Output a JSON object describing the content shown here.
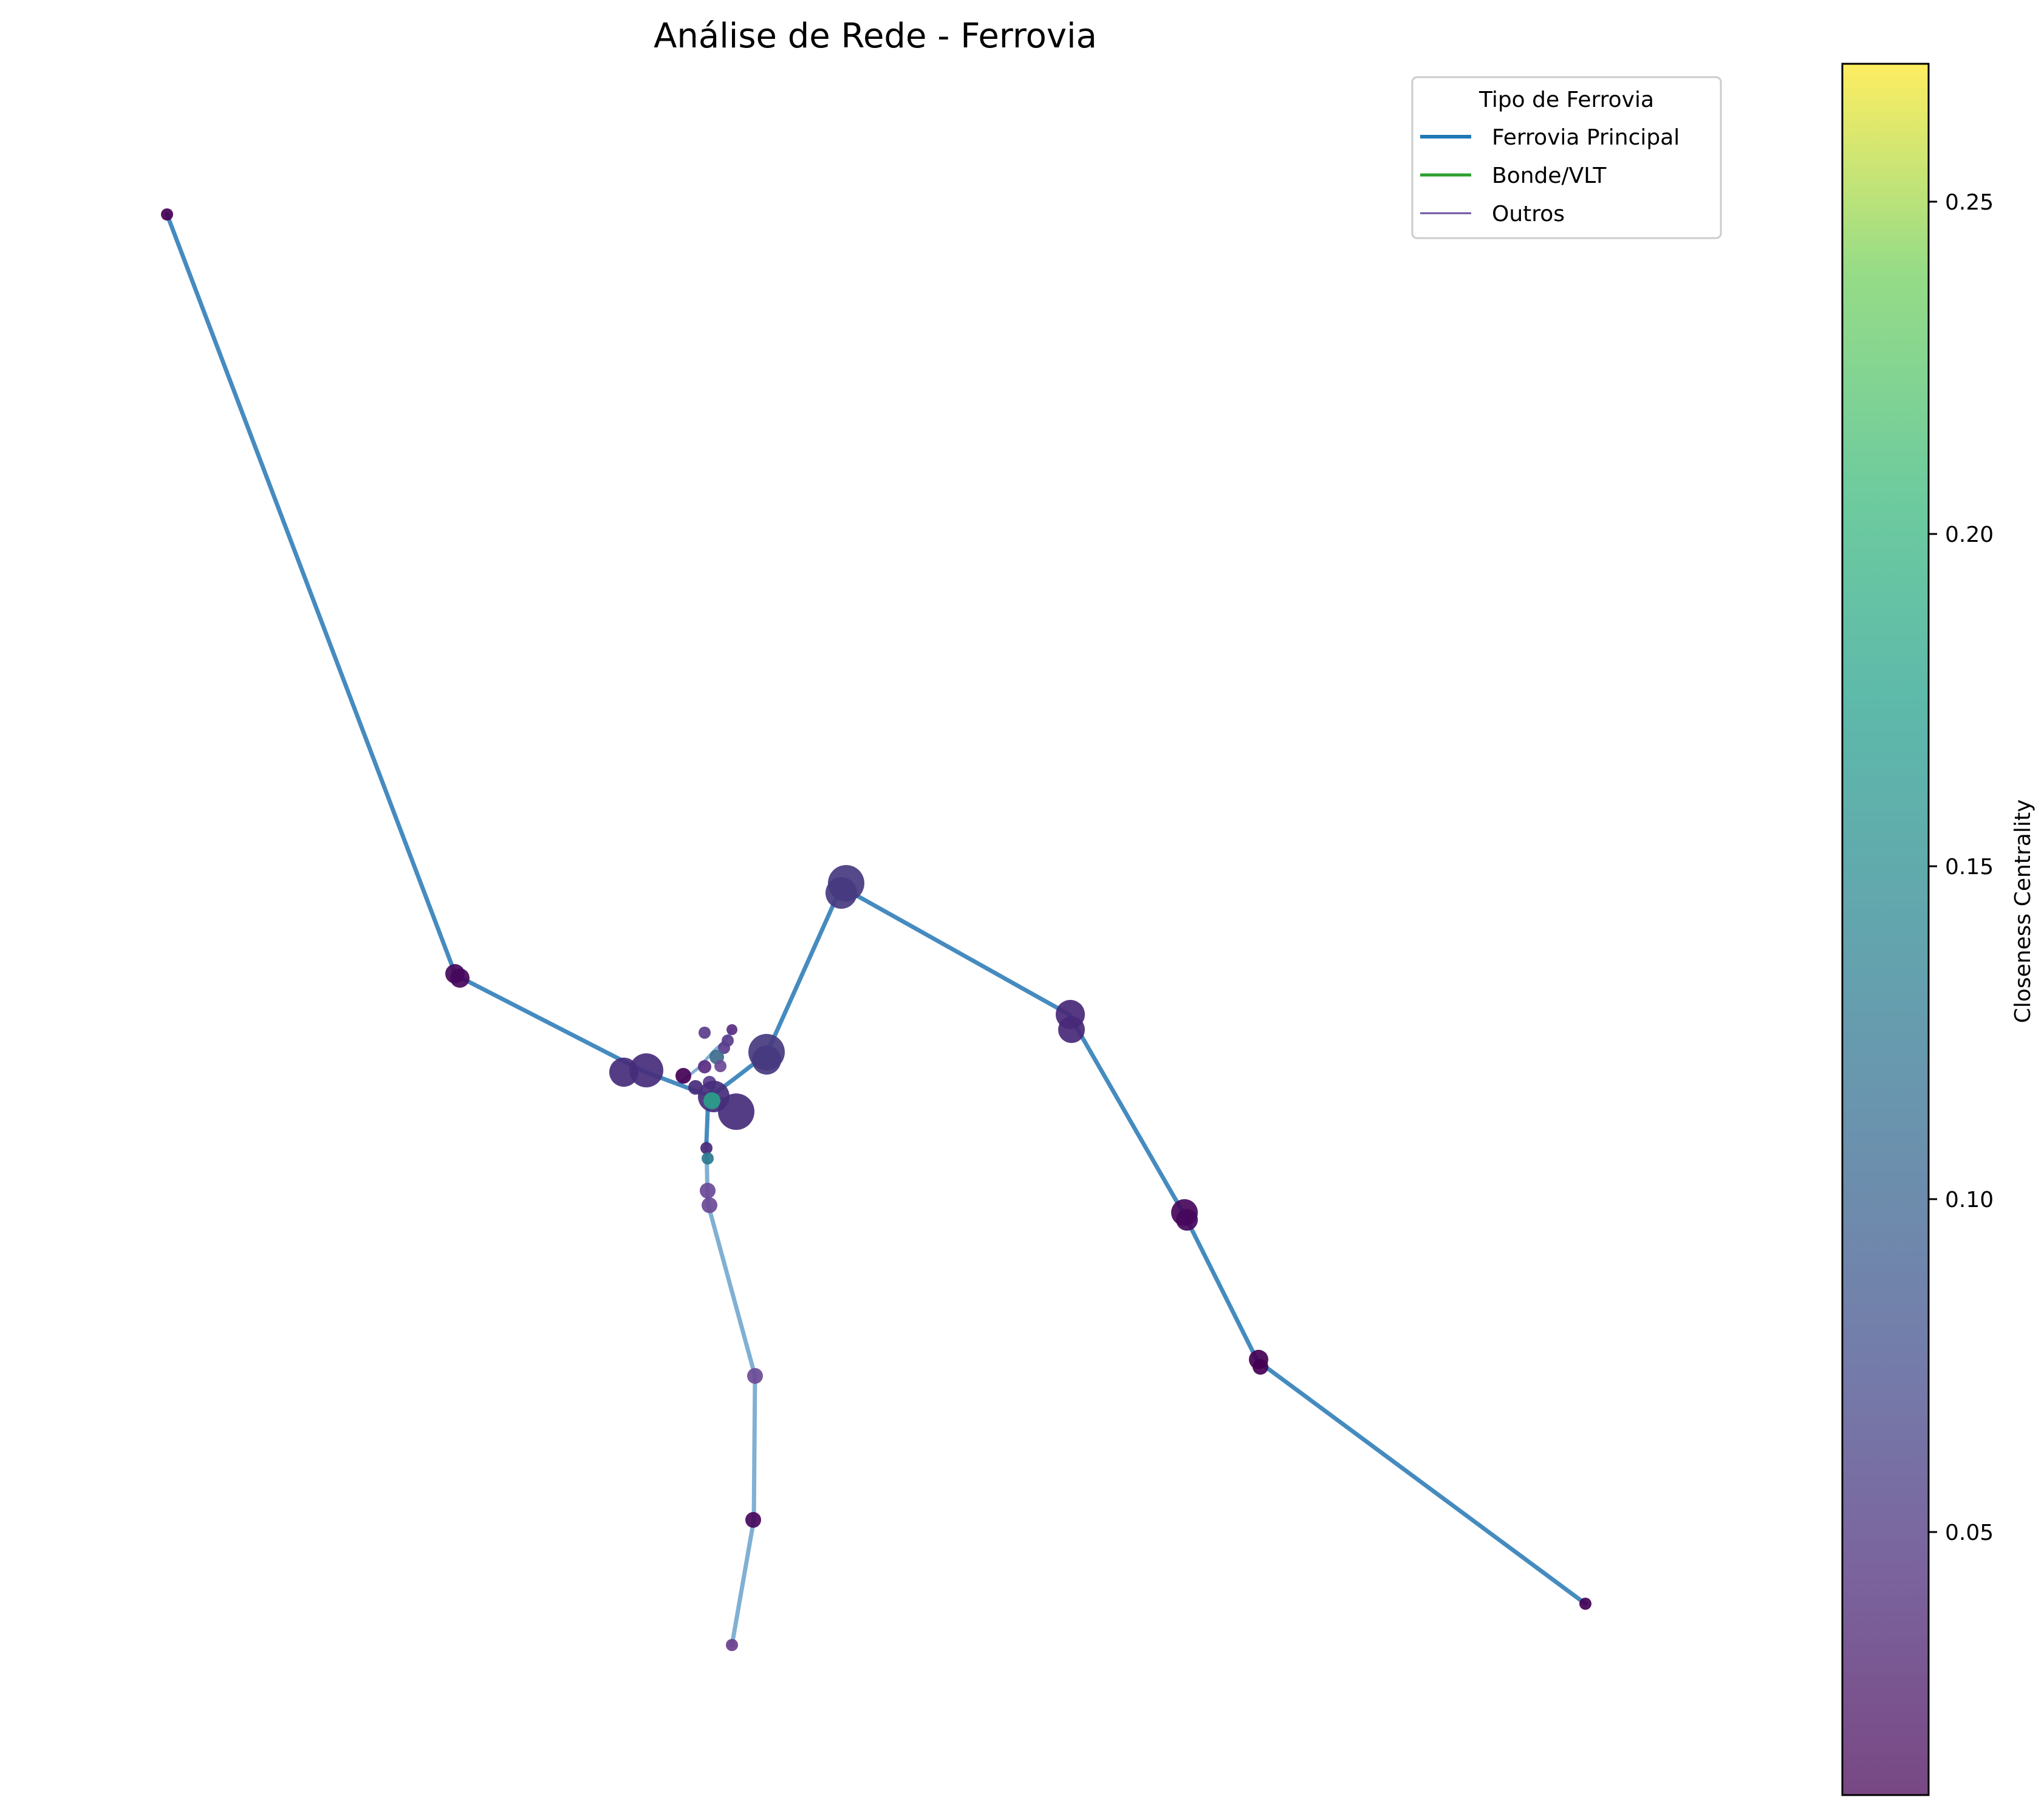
{
  "title": "Análise de Rede - Ferrovia",
  "legend": {
    "title": "Tipo de Ferrovia",
    "entries": [
      {
        "label": "Ferrovia Principal",
        "color": "#1f77b4"
      },
      {
        "label": "Bonde/VLT",
        "color": "#2ca02c"
      },
      {
        "label": "Outros",
        "color": "#6a51a3"
      }
    ]
  },
  "colorbar": {
    "label": "Closeness Centrality",
    "colormap": "viridis",
    "range": [
      0.01,
      0.27
    ],
    "ticks": [
      "0.05",
      "0.10",
      "0.15",
      "0.20",
      "0.25"
    ],
    "tick_values": [
      0.05,
      0.1,
      0.15,
      0.2,
      0.25
    ]
  }
}
